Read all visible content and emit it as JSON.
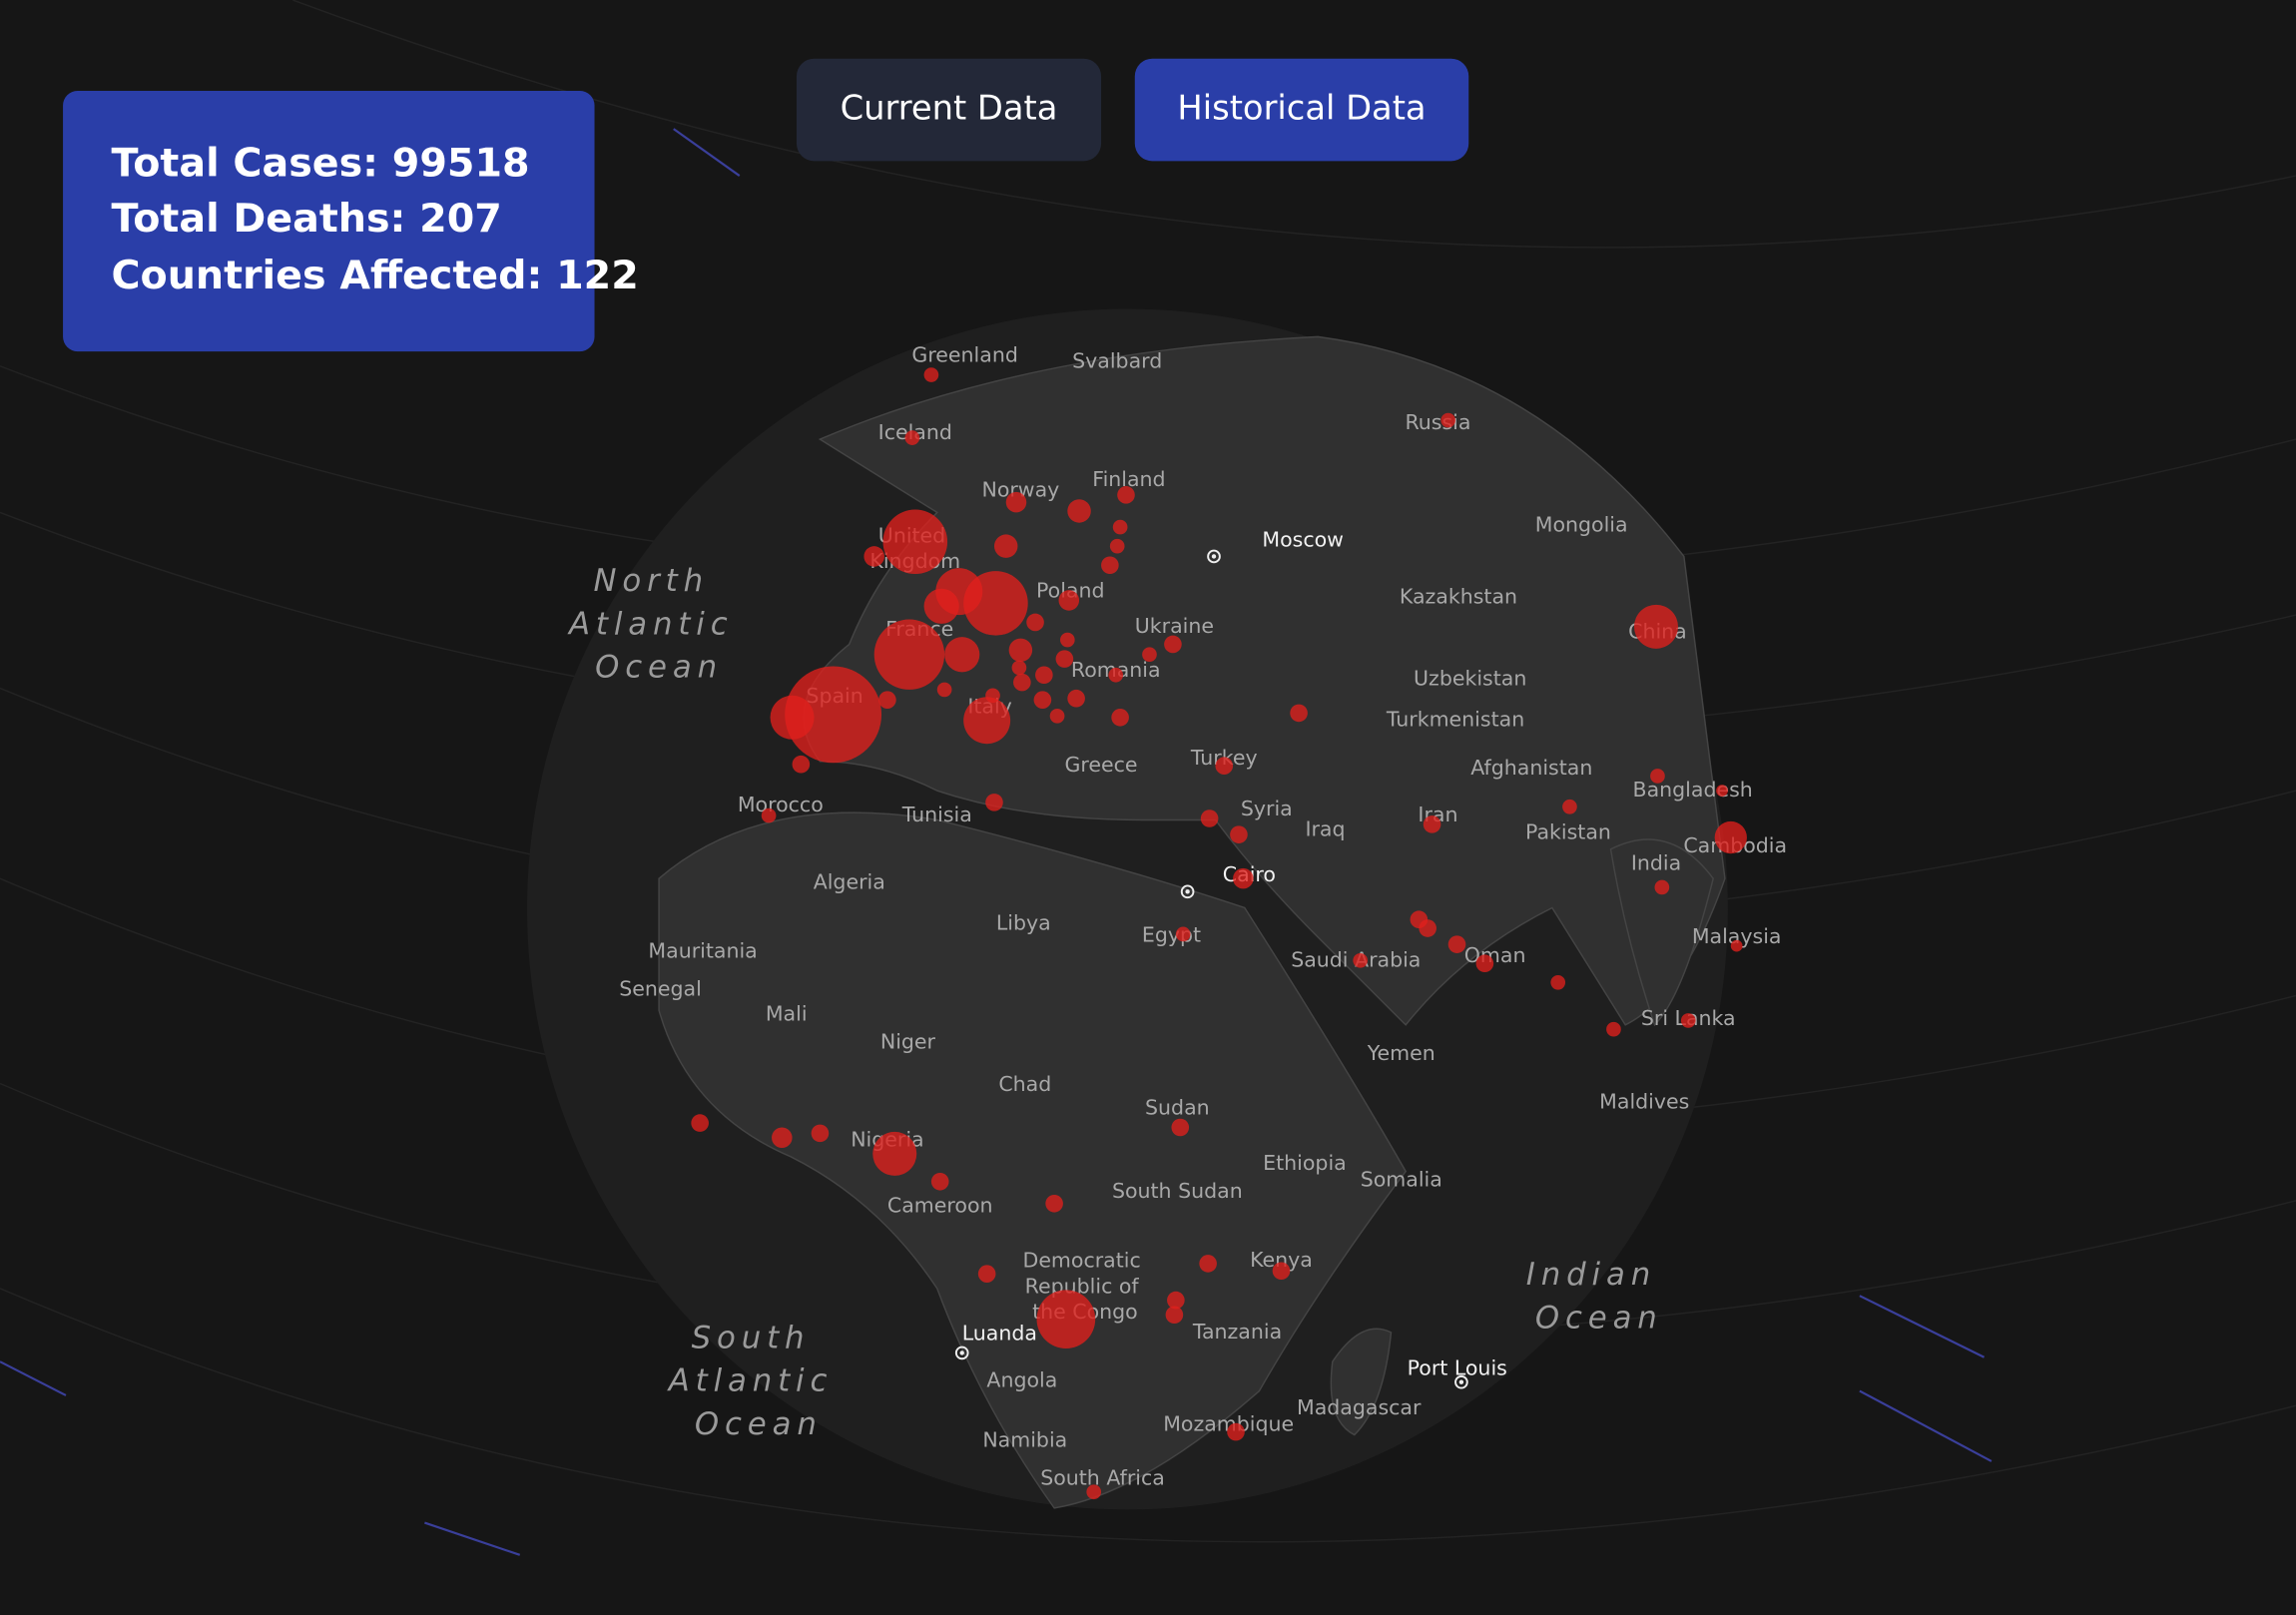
{
  "stats": {
    "lines": [
      "Total Cases: 99518",
      "Total Deaths: 207",
      "Countries Affected: 122"
    ]
  },
  "buttons": [
    "Current Data",
    "Historical Data"
  ],
  "map": {
    "labels": [
      "Greenland",
      "Svalbard",
      "Iceland",
      "Russia",
      "Finland",
      "Norway",
      "Mongolia",
      "Moscow",
      "United Kingdom",
      "Poland",
      "Kazakhstan",
      "North Atlantic Ocean",
      "Ukraine",
      "France",
      "China",
      "Romania",
      "Uzbekistan",
      "Spain",
      "Italy",
      "Turkmenistan",
      "Turkey",
      "Greece",
      "Afghanistan",
      "Bangladesh",
      "Morocco",
      "Tunisia",
      "Syria",
      "Iran",
      "Iraq",
      "Pakistan",
      "Cambodia",
      "India",
      "Cairo",
      "Algeria",
      "Libya",
      "Egypt",
      "Malaysia",
      "Mauritania",
      "Saudi Arabia",
      "Oman",
      "Senegal",
      "Mali",
      "Sri Lanka",
      "Niger",
      "Yemen",
      "Chad",
      "Maldives",
      "Sudan",
      "Nigeria",
      "Ethiopia",
      "Somalia",
      "South Sudan",
      "Cameroon",
      "Democratic Republic of the Congo",
      "Kenya",
      "Indian Ocean",
      "Luanda",
      "South Atlantic Ocean",
      "Tanzania",
      "Port Louis",
      "Angola",
      "Madagascar",
      "Mozambique",
      "Namibia",
      "South Africa"
    ]
  }
}
